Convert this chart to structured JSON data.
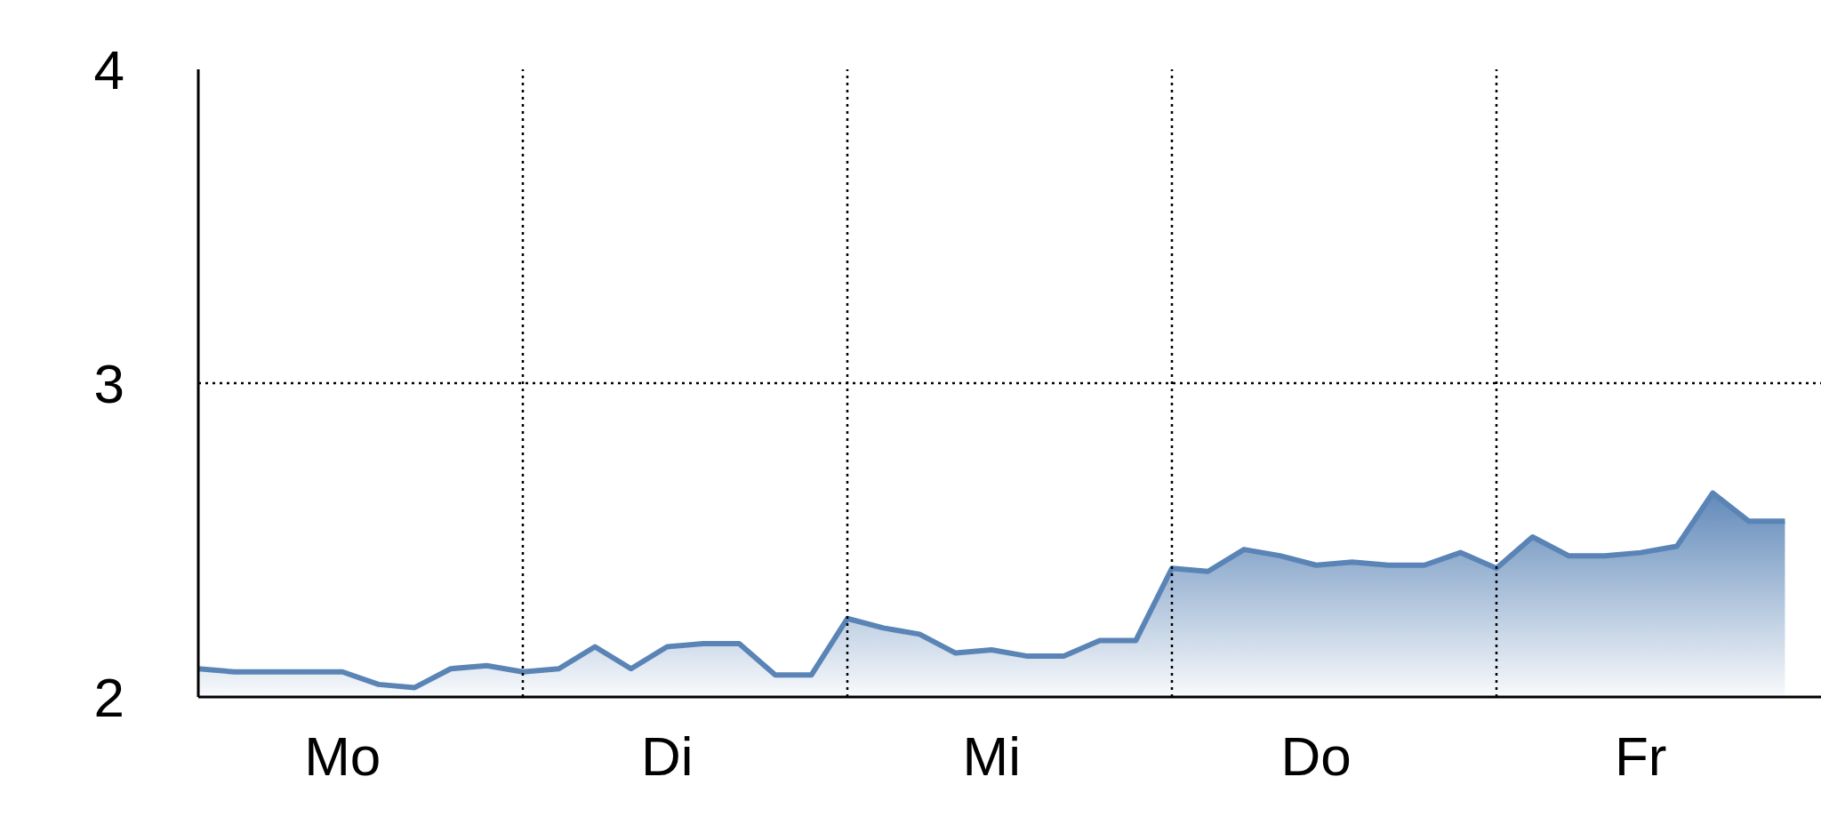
{
  "chart_data": {
    "type": "area",
    "categories": [
      null,
      null,
      null,
      null,
      "Mo",
      null,
      null,
      null,
      null,
      null,
      null,
      null,
      null,
      "Di",
      null,
      null,
      null,
      null,
      null,
      null,
      null,
      null,
      "Mi",
      null,
      null,
      null,
      null,
      null,
      null,
      null,
      null,
      "Do",
      null,
      null,
      null,
      null,
      null,
      null,
      null,
      null,
      "Fr",
      null,
      null,
      null,
      null
    ],
    "series": [
      {
        "color": "#5a84b6",
        "values": [
          2.09,
          2.08,
          2.08,
          2.08,
          2.08,
          2.04,
          2.03,
          2.09,
          2.1,
          2.08,
          2.09,
          2.16,
          2.09,
          2.16,
          2.17,
          2.17,
          2.07,
          2.07,
          2.25,
          2.22,
          2.2,
          2.14,
          2.15,
          2.13,
          2.13,
          2.18,
          2.18,
          2.41,
          2.4,
          2.47,
          2.45,
          2.42,
          2.43,
          2.42,
          2.42,
          2.46,
          2.41,
          2.51,
          2.45,
          2.45,
          2.46,
          2.48,
          2.65,
          2.56,
          2.56
        ]
      }
    ],
    "ylim": [
      2,
      4
    ],
    "yticks": [
      2,
      3,
      4
    ],
    "grid": true,
    "line_style": "solid"
  }
}
